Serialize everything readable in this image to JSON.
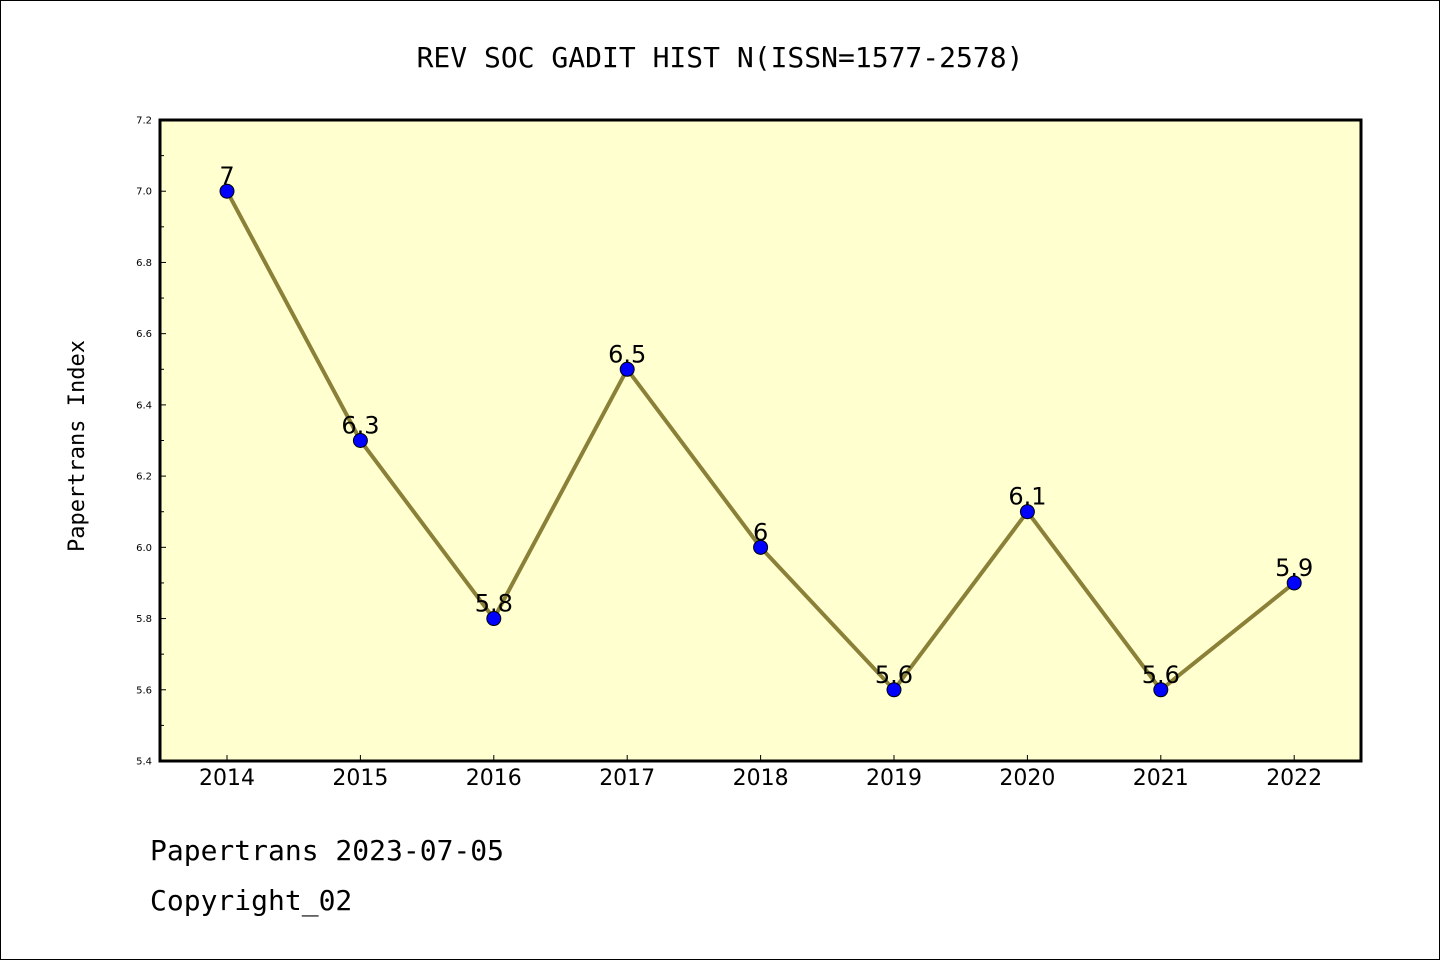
{
  "chart_data": {
    "type": "line",
    "title": "REV SOC GADIT HIST N(ISSN=1577-2578)",
    "xlabel": "",
    "ylabel": "Papertrans Index",
    "categories": [
      "2014",
      "2015",
      "2016",
      "2017",
      "2018",
      "2019",
      "2020",
      "2021",
      "2022"
    ],
    "values": [
      7,
      6.3,
      5.8,
      6.5,
      6,
      5.6,
      6.1,
      5.6,
      5.9
    ],
    "data_labels": [
      "7",
      "6.3",
      "5.8",
      "6.5",
      "6",
      "5.6",
      "6.1",
      "5.6",
      "5.9"
    ],
    "ylim": [
      5.4,
      7.2
    ],
    "yticks": [
      "5.4",
      "5.6",
      "5.8",
      "6.0",
      "6.2",
      "6.4",
      "6.6",
      "6.8",
      "7.0",
      "7.2"
    ],
    "grid": false,
    "legend": "none",
    "colors": {
      "plot_background": "#ffffd0",
      "line": "#8b8038",
      "marker": "#0000ff"
    }
  },
  "footer": {
    "line1": "Papertrans 2023-07-05",
    "line2": "Copyright_02"
  }
}
